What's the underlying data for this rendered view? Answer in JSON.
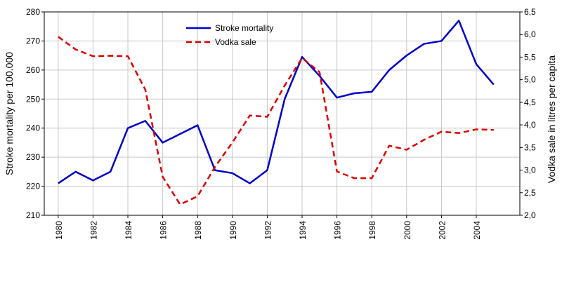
{
  "chart_data": {
    "type": "line",
    "x": [
      1980,
      1981,
      1982,
      1983,
      1984,
      1985,
      1986,
      1987,
      1988,
      1989,
      1990,
      1991,
      1992,
      1993,
      1994,
      1995,
      1996,
      1997,
      1998,
      1999,
      2000,
      2001,
      2002,
      2003,
      2004,
      2005
    ],
    "x_tick_labels": [
      "1980",
      "1982",
      "1984",
      "1986",
      "1988",
      "1990",
      "1992",
      "1994",
      "1996",
      "1998",
      "2000",
      "2002",
      "2004"
    ],
    "xlim": [
      1979.2,
      2006.5
    ],
    "series": [
      {
        "name": "Stroke mortality",
        "axis": "left",
        "color": "#0000cc",
        "dash": "solid",
        "values": [
          221,
          225,
          222,
          225,
          240,
          242.5,
          235,
          238,
          241,
          225.5,
          224.5,
          221,
          225.5,
          250,
          264.5,
          258,
          250.5,
          252,
          252.5,
          260,
          265,
          269,
          270,
          277,
          262,
          255
        ]
      },
      {
        "name": "Vodka sale",
        "axis": "right",
        "color": "#dd0000",
        "dash": "dashed",
        "values": [
          5.95,
          5.67,
          5.52,
          5.53,
          5.52,
          4.78,
          2.85,
          2.24,
          2.42,
          3.07,
          3.61,
          4.21,
          4.18,
          4.87,
          5.48,
          5.17,
          2.97,
          2.82,
          2.82,
          3.54,
          3.45,
          3.67,
          3.85,
          3.82,
          3.9,
          3.89
        ]
      }
    ],
    "y_left": {
      "label": "Stroke mortality per 100.000",
      "range": [
        210,
        280
      ],
      "ticks": [
        "210",
        "220",
        "230",
        "240",
        "250",
        "260",
        "270",
        "280"
      ]
    },
    "y_right": {
      "label": "Vodka sale in litres per capita",
      "range": [
        2.0,
        6.5
      ],
      "ticks": [
        "2,0",
        "2,5",
        "3,0",
        "3,5",
        "4,0",
        "4,5",
        "5,0",
        "5,5",
        "6,0",
        "6,5"
      ]
    },
    "grid": true,
    "legend_position": "top-center"
  }
}
